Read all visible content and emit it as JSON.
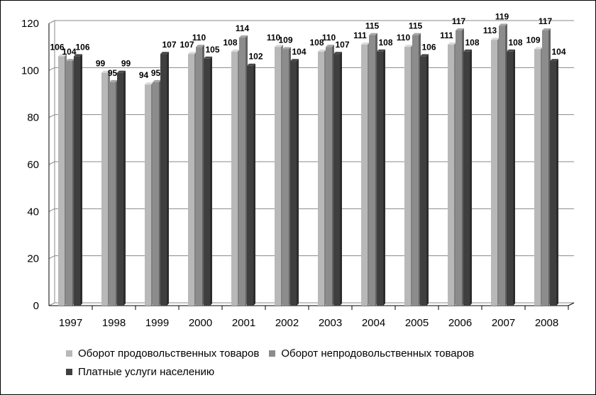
{
  "chart_data": {
    "type": "bar",
    "categories": [
      "1997",
      "1998",
      "1999",
      "2000",
      "2001",
      "2002",
      "2003",
      "2004",
      "2005",
      "2006",
      "2007",
      "2008"
    ],
    "series": [
      {
        "name": "Оборот продовольственных товаров",
        "values": [
          106,
          99,
          94,
          107,
          108,
          110,
          108,
          111,
          110,
          111,
          113,
          109
        ],
        "color": "#b8b8b8"
      },
      {
        "name": "Оборот непродовольственных товаров",
        "values": [
          104,
          95,
          95,
          110,
          114,
          109,
          110,
          115,
          115,
          117,
          119,
          117
        ],
        "color": "#8c8c8c"
      },
      {
        "name": "Платные услуги населению",
        "values": [
          106,
          99,
          107,
          105,
          102,
          104,
          107,
          108,
          106,
          108,
          108,
          104
        ],
        "color": "#3f3f3f"
      }
    ],
    "ylim": [
      0,
      120
    ],
    "yticks": [
      "0",
      "20",
      "40",
      "60",
      "80",
      "100",
      "120"
    ],
    "grid": true,
    "legend_position": "bottom",
    "title": "",
    "xlabel": "",
    "ylabel": ""
  }
}
